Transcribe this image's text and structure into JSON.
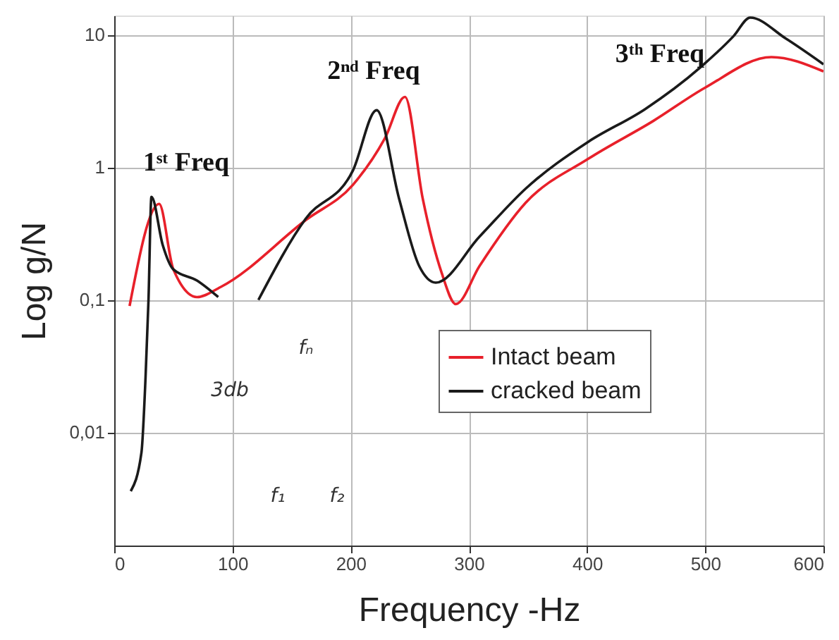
{
  "chart_data": {
    "type": "line",
    "xlabel": "Frequency -Hz",
    "ylabel": "Log g/N",
    "log": "y",
    "grid": true,
    "legend": "right",
    "line_style": "solid",
    "marker": "none",
    "xlim": [
      0,
      600
    ],
    "xticks": [
      0,
      100,
      200,
      300,
      400,
      500,
      600
    ],
    "ylim": [
      0.0014,
      14
    ],
    "yticks": [
      {
        "value": 0.01,
        "label": "0,01"
      },
      {
        "value": 0.1,
        "label": "0,1"
      },
      1,
      10
    ],
    "series": [
      {
        "name": "Intact beam",
        "color": "#e8202a",
        "x": [
          13,
          38,
          50,
          70,
          90,
          162,
          202,
          229,
          246,
          261,
          277,
          289,
          309,
          348,
          401,
          456,
          500,
          556,
          600
        ],
        "values": [
          0.09,
          0.53,
          0.17,
          0.105,
          0.125,
          0.4,
          0.74,
          1.66,
          3.4,
          0.58,
          0.16,
          0.093,
          0.18,
          0.54,
          1.16,
          2.24,
          4.0,
          6.8,
          5.3
        ]
      },
      {
        "name": "cracked beam",
        "color": "#1a1a1a",
        "x": [
          14,
          23,
          26.5,
          29,
          31.5,
          41,
          50,
          70,
          88,
          105,
          122,
          162,
          202,
          222,
          241,
          258,
          272,
          309,
          348,
          401,
          449,
          496,
          524,
          538,
          568,
          600
        ],
        "values": [
          0.0036,
          0.007,
          0.026,
          0.1,
          0.6,
          0.26,
          0.17,
          0.14,
          0.105,
          null,
          0.1,
          0.41,
          0.95,
          2.7,
          0.58,
          0.18,
          0.135,
          0.3,
          0.69,
          1.56,
          2.75,
          5.7,
          9.8,
          13.5,
          9.4,
          6.0
        ]
      }
    ],
    "annotations": [
      "1ˢᵗ Freq",
      "2ⁿᵈ Freq",
      "3ᵗʰ Freq",
      "fₙ",
      "3db",
      "f₁",
      "f₂"
    ]
  }
}
